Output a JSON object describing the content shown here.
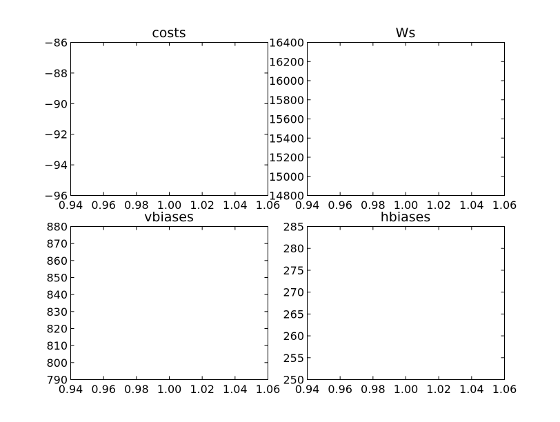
{
  "chart_data": [
    {
      "type": "line",
      "title": "costs",
      "xlabel": "",
      "ylabel": "",
      "series": [],
      "xlim": [
        0.94,
        1.06
      ],
      "ylim": [
        -96,
        -86
      ],
      "x_ticks": [
        "0.94",
        "0.96",
        "0.98",
        "1.00",
        "1.02",
        "1.04",
        "1.06"
      ],
      "y_ticks": [
        "−96",
        "−94",
        "−92",
        "−90",
        "−88",
        "−86"
      ],
      "grid": false
    },
    {
      "type": "line",
      "title": "Ws",
      "xlabel": "",
      "ylabel": "",
      "series": [],
      "xlim": [
        0.94,
        1.06
      ],
      "ylim": [
        14800,
        16400
      ],
      "x_ticks": [
        "0.94",
        "0.96",
        "0.98",
        "1.00",
        "1.02",
        "1.04",
        "1.06"
      ],
      "y_ticks": [
        "14800",
        "15000",
        "15200",
        "15400",
        "15600",
        "15800",
        "16000",
        "16200",
        "16400"
      ],
      "grid": false
    },
    {
      "type": "line",
      "title": "vbiases",
      "xlabel": "",
      "ylabel": "",
      "series": [],
      "xlim": [
        0.94,
        1.06
      ],
      "ylim": [
        790,
        880
      ],
      "x_ticks": [
        "0.94",
        "0.96",
        "0.98",
        "1.00",
        "1.02",
        "1.04",
        "1.06"
      ],
      "y_ticks": [
        "790",
        "800",
        "810",
        "820",
        "830",
        "840",
        "850",
        "860",
        "870",
        "880"
      ],
      "grid": false
    },
    {
      "type": "line",
      "title": "hbiases",
      "xlabel": "",
      "ylabel": "",
      "series": [],
      "xlim": [
        0.94,
        1.06
      ],
      "ylim": [
        250,
        285
      ],
      "x_ticks": [
        "0.94",
        "0.96",
        "0.98",
        "1.00",
        "1.02",
        "1.04",
        "1.06"
      ],
      "y_ticks": [
        "250",
        "255",
        "260",
        "265",
        "270",
        "275",
        "280",
        "285"
      ],
      "grid": false
    }
  ]
}
